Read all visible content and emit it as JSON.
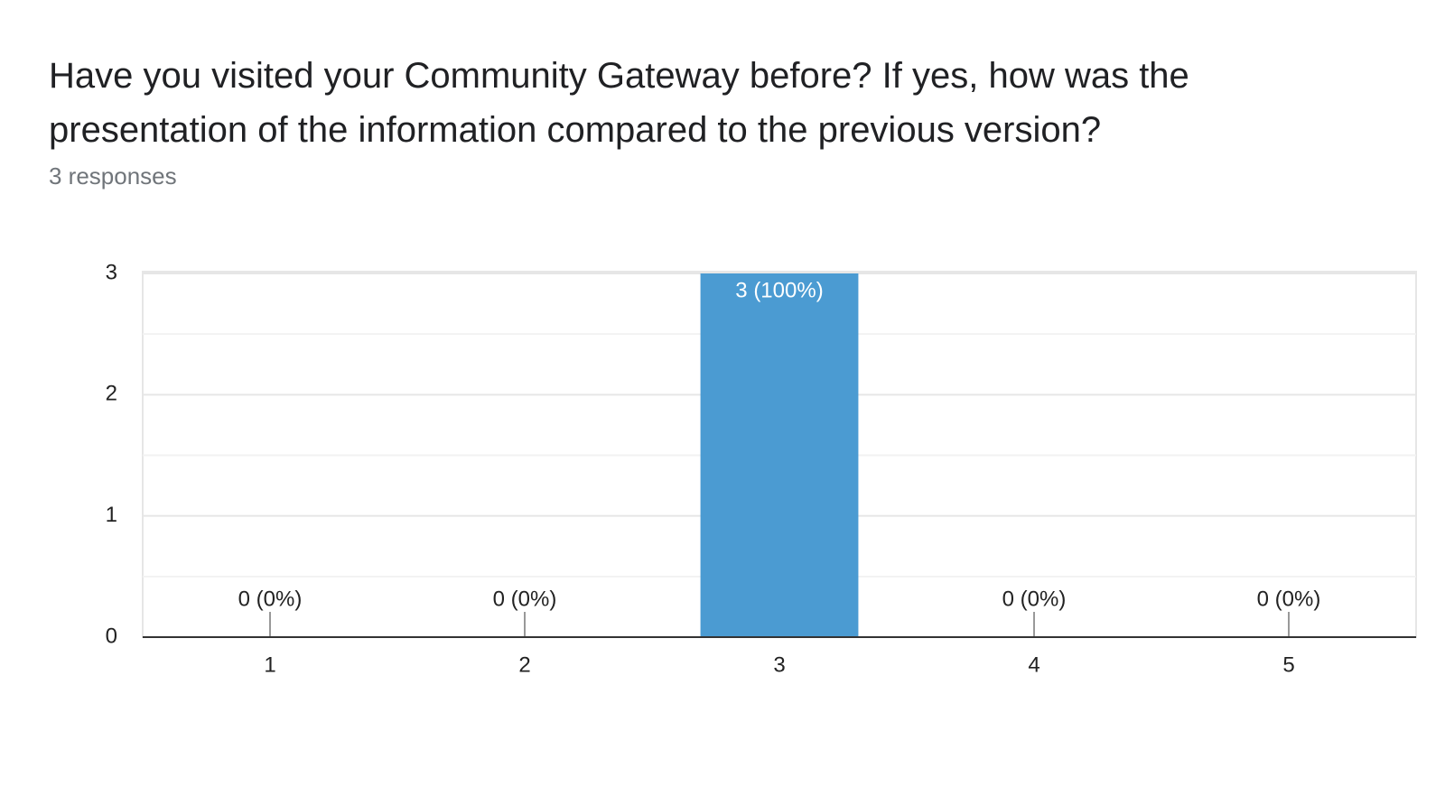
{
  "chart_data": {
    "type": "bar",
    "title": "Have you visited your Community Gateway before? If yes, how was the presentation of the information compared to the previous version?",
    "subtitle": "3 responses",
    "categories": [
      "1",
      "2",
      "3",
      "4",
      "5"
    ],
    "values": [
      0,
      0,
      3,
      0,
      0
    ],
    "value_labels": [
      "0 (0%)",
      "0 (0%)",
      "3 (100%)",
      "0 (0%)",
      "0 (0%)"
    ],
    "color": "#4b9bd2",
    "ylim": [
      0,
      3
    ],
    "yticks": [
      0,
      1,
      2,
      3
    ],
    "grid": true
  }
}
